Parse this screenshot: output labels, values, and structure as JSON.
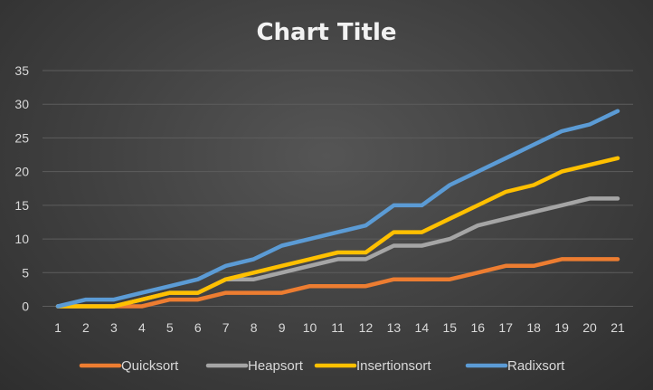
{
  "chart_data": {
    "type": "line",
    "title": "Chart Title",
    "xlabel": "",
    "ylabel": "",
    "categories": [
      "1",
      "2",
      "3",
      "4",
      "5",
      "6",
      "7",
      "8",
      "9",
      "10",
      "11",
      "12",
      "13",
      "14",
      "15",
      "16",
      "17",
      "18",
      "19",
      "20",
      "21"
    ],
    "ylim": [
      0,
      35
    ],
    "yticks": [
      0,
      5,
      10,
      15,
      20,
      25,
      30,
      35
    ],
    "grid": true,
    "legend_position": "bottom",
    "series": [
      {
        "name": "Quicksort",
        "color": "#ed7d31",
        "values": [
          0,
          0,
          0,
          0,
          1,
          1,
          2,
          2,
          2,
          3,
          3,
          3,
          4,
          4,
          4,
          5,
          6,
          6,
          7,
          7,
          7
        ]
      },
      {
        "name": "Heapsort",
        "color": "#a5a5a5",
        "values": [
          0,
          0,
          0,
          1,
          2,
          2,
          4,
          4,
          5,
          6,
          7,
          7,
          9,
          9,
          10,
          12,
          13,
          14,
          15,
          16,
          16
        ]
      },
      {
        "name": "Insertionsort",
        "color": "#ffc000",
        "values": [
          0,
          0,
          0,
          1,
          2,
          2,
          4,
          5,
          6,
          7,
          8,
          8,
          11,
          11,
          13,
          15,
          17,
          18,
          20,
          21,
          22
        ]
      },
      {
        "name": "Radixsort",
        "color": "#5b9bd5",
        "values": [
          0,
          1,
          1,
          2,
          3,
          4,
          6,
          7,
          9,
          10,
          11,
          12,
          15,
          15,
          18,
          20,
          22,
          24,
          26,
          27,
          29
        ]
      }
    ]
  }
}
